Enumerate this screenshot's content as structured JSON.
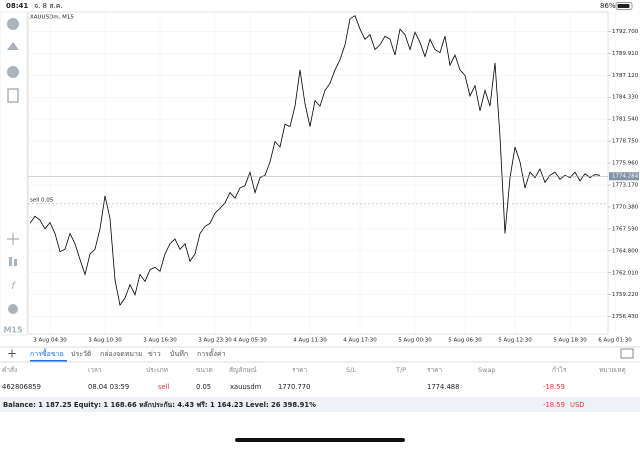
{
  "status_bar": {
    "time": "08:41",
    "date": "จ. 8 ส.ค.",
    "battery": "86%"
  },
  "toolbar": {
    "timeframe": "M15"
  },
  "chart_data": {
    "type": "line",
    "title": "XAUUSDm, M15",
    "color": "#000000",
    "categories": [
      null,
      null,
      null,
      null,
      "3 Aug 04:30",
      null,
      null,
      null,
      null,
      null,
      null,
      null,
      null,
      null,
      null,
      "3 Aug 10:30",
      null,
      null,
      null,
      null,
      null,
      null,
      null,
      null,
      null,
      null,
      "3 Aug 16:30",
      null,
      null,
      null,
      null,
      null,
      null,
      null,
      null,
      null,
      null,
      "3 Aug 23:30",
      null,
      null,
      null,
      null,
      null,
      null,
      "4 Aug 05:30",
      null,
      null,
      null,
      null,
      null,
      null,
      null,
      null,
      null,
      null,
      null,
      "4 Aug 11:30",
      null,
      null,
      null,
      null,
      null,
      null,
      null,
      null,
      null,
      "4 Aug 17:30",
      null,
      null,
      null,
      null,
      null,
      null,
      null,
      null,
      null,
      null,
      "5 Aug 00:30",
      null,
      null,
      null,
      null,
      null,
      null,
      null,
      null,
      null,
      "5 Aug 06:30",
      null,
      null,
      null,
      null,
      null,
      null,
      null,
      null,
      null,
      "5 Aug 12:30",
      null,
      null,
      null,
      null,
      null,
      null,
      null,
      null,
      null,
      null,
      "5 Aug 18:30",
      null,
      null,
      null,
      null,
      null,
      null,
      null,
      null,
      "6 Aug 01:30"
    ],
    "values": [
      1768.3,
      1769.2,
      1768.7,
      1767.6,
      1768.4,
      1767.0,
      1764.7,
      1765.0,
      1767.0,
      1765.7,
      1763.7,
      1761.8,
      1764.4,
      1765.0,
      1767.6,
      1771.8,
      1768.9,
      1761.1,
      1757.9,
      1758.8,
      1760.5,
      1759.2,
      1761.8,
      1760.9,
      1762.4,
      1762.7,
      1762.2,
      1764.4,
      1765.7,
      1766.3,
      1765.0,
      1765.7,
      1763.5,
      1764.4,
      1767.0,
      1767.9,
      1768.3,
      1769.6,
      1770.2,
      1770.9,
      1772.2,
      1771.5,
      1772.8,
      1773.1,
      1774.8,
      1772.2,
      1774.1,
      1774.4,
      1776.1,
      1778.7,
      1778.0,
      1780.9,
      1780.6,
      1783.2,
      1787.8,
      1783.5,
      1780.6,
      1783.9,
      1783.2,
      1785.2,
      1786.1,
      1787.8,
      1789.1,
      1791.0,
      1794.3,
      1794.7,
      1793.0,
      1791.7,
      1792.3,
      1790.4,
      1791.0,
      1792.1,
      1791.7,
      1789.7,
      1793.0,
      1792.3,
      1790.4,
      1792.6,
      1791.3,
      1789.5,
      1791.7,
      1790.4,
      1790.0,
      1792.1,
      1788.4,
      1789.7,
      1787.8,
      1787.1,
      1784.5,
      1785.8,
      1782.6,
      1785.2,
      1783.2,
      1788.7,
      1779.3,
      1767.0,
      1774.1,
      1778.0,
      1776.1,
      1772.8,
      1774.8,
      1774.1,
      1775.2,
      1773.5,
      1774.4,
      1774.8,
      1773.9,
      1774.4,
      1774.1,
      1774.8,
      1773.7,
      1774.6,
      1774.1,
      1774.5,
      1774.4,
      null,
      null,
      null
    ],
    "ylim": [
      1754.35,
      1795.17
    ],
    "yticks": [
      {
        "value": 1756.43,
        "label": "1756.430"
      },
      {
        "value": 1759.22,
        "label": "1759.220"
      },
      {
        "value": 1762.01,
        "label": "1762.010"
      },
      {
        "value": 1764.8,
        "label": "1764.800"
      },
      {
        "value": 1767.59,
        "label": "1767.590"
      },
      {
        "value": 1770.38,
        "label": "1770.380"
      },
      {
        "value": 1773.17,
        "label": "1773.170"
      },
      {
        "value": 1775.96,
        "label": "1775.960"
      },
      {
        "value": 1778.75,
        "label": "1778.750"
      },
      {
        "value": 1781.54,
        "label": "1781.540"
      },
      {
        "value": 1784.33,
        "label": "1784.330"
      },
      {
        "value": 1787.12,
        "label": "1787.120"
      },
      {
        "value": 1789.91,
        "label": "1789.910"
      },
      {
        "value": 1792.7,
        "label": "1792.700"
      }
    ],
    "grid": true,
    "current_price": 1774.284,
    "order_line": {
      "label": "sell 0.05",
      "value": 1770.77
    }
  },
  "tabs": [
    "การซื้อขาย",
    "ประวัติ",
    "กล่องจดหมาย",
    "ข่าว",
    "บันทึก",
    "การตั้งค่า"
  ],
  "table": {
    "columns": [
      "คำสั่ง",
      "เวลา",
      "ประเภท",
      "ขนาด",
      "สัญลักษณ์",
      "ราคา",
      "S/L",
      "T/P",
      "ราคา",
      "Swap",
      "กำไร",
      "หมายเหตุ"
    ],
    "row": {
      "order": "462806859",
      "time": "08.04 03:59",
      "type": "sell",
      "volume": "0.05",
      "symbol": "xauusdm",
      "open_price": "1770.770",
      "price": "1774.488",
      "profit": "-18.59"
    },
    "summary": {
      "text": "Balance: 1 187.25 Equity: 1 168.66 หลักประกัน: 4.43 ฟรี: 1 164.23 Level: 26 398.91%",
      "profit": "-18.59",
      "currency": "USD"
    }
  }
}
